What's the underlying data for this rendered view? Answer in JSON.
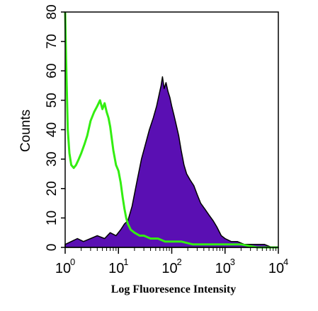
{
  "chart_data": {
    "type": "area",
    "title": "",
    "xlabel": "Log Fluoresence Intensity",
    "ylabel": "Counts",
    "x_scale": "log",
    "xlim": [
      1,
      10000
    ],
    "ylim": [
      0,
      80
    ],
    "x_ticks": [
      {
        "value": 1,
        "base": "10",
        "exp": "0"
      },
      {
        "value": 10,
        "base": "10",
        "exp": "1"
      },
      {
        "value": 100,
        "base": "10",
        "exp": "2"
      },
      {
        "value": 1000,
        "base": "10",
        "exp": "3"
      },
      {
        "value": 10000,
        "base": "10",
        "exp": "4"
      }
    ],
    "y_ticks": [
      "0",
      "10",
      "20",
      "30",
      "40",
      "50",
      "60",
      "70",
      "80"
    ],
    "grid": false,
    "legend": "none",
    "series": [
      {
        "style": "filled",
        "fill_color": "#5a0fb3",
        "stroke_color": "#000000",
        "x": [
          1.0,
          1.3,
          1.7,
          2.2,
          3.0,
          4.0,
          5.5,
          7.0,
          9.0,
          11.0,
          13.0,
          15.0,
          18.0,
          22.0,
          27.0,
          32.0,
          38.0,
          45.0,
          52.0,
          58.0,
          63.0,
          67.0,
          72.0,
          78.0,
          85.0,
          92.0,
          100.0,
          110.0,
          120.0,
          135.0,
          150.0,
          170.0,
          190.0,
          220.0,
          260.0,
          300.0,
          350.0,
          420.0,
          500.0,
          600.0,
          700.0,
          850.0,
          1000.0,
          1300.0,
          1700.0,
          2300.0,
          3000.0,
          4000.0,
          5500.0,
          7500.0,
          10000.0
        ],
        "y": [
          1,
          2,
          3,
          2,
          3,
          4,
          3,
          5,
          4,
          6,
          8,
          9,
          14,
          22,
          30,
          35,
          40,
          44,
          48,
          52,
          55,
          58,
          54,
          56,
          53,
          51,
          48,
          45,
          42,
          38,
          33,
          28,
          25,
          23,
          21,
          18,
          15,
          13,
          11,
          9,
          7,
          4,
          3,
          2,
          2,
          1,
          1,
          1,
          1,
          0,
          0
        ]
      },
      {
        "style": "line",
        "stroke_color": "#33ee11",
        "x": [
          1.0,
          1.04,
          1.08,
          1.12,
          1.2,
          1.3,
          1.45,
          1.6,
          1.8,
          2.0,
          2.3,
          2.6,
          3.0,
          3.5,
          4.0,
          4.5,
          5.0,
          5.5,
          6.0,
          6.5,
          7.0,
          7.5,
          8.0,
          9.0,
          10.0,
          11.0,
          12.0,
          13.0,
          14.0,
          15.0,
          17.0,
          20.0,
          25.0,
          30.0,
          40.0,
          55.0,
          75.0,
          100.0,
          150.0,
          250.0,
          400.0,
          700.0,
          1000.0,
          2000.0,
          4000.0,
          10000.0
        ],
        "y": [
          80,
          64,
          52,
          40,
          32,
          28,
          27,
          28,
          30,
          32,
          35,
          38,
          43,
          46,
          48,
          50,
          47,
          49,
          46,
          44,
          41,
          37,
          33,
          28,
          26,
          22,
          17,
          13,
          10,
          8,
          6,
          5,
          4,
          4,
          3,
          3,
          2,
          2,
          2,
          1,
          1,
          1,
          1,
          1,
          0,
          0
        ]
      }
    ]
  }
}
